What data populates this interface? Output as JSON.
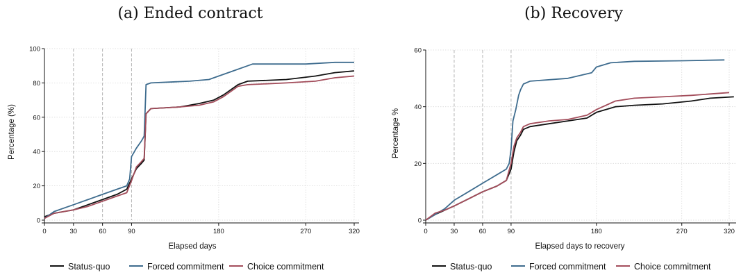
{
  "charts": [
    {
      "panel_title": "(a) Ended contract",
      "xlabel": "Elapsed days",
      "ylabel": "Percentage (%)",
      "xticks": [
        "0",
        "30",
        "60",
        "90",
        "180",
        "270",
        "320"
      ],
      "yticks": [
        "0",
        "20",
        "40",
        "60",
        "80",
        "100"
      ]
    },
    {
      "panel_title": "(b) Recovery",
      "xlabel": "Elapsed days to recovery",
      "ylabel": "Percentage %",
      "xticks": [
        "0",
        "30",
        "60",
        "90",
        "180",
        "270",
        "320"
      ],
      "yticks": [
        "0",
        "20",
        "40",
        "60"
      ]
    }
  ],
  "legend": [
    "Status-quo",
    "Forced commitment",
    "Choice commitment"
  ],
  "colors": {
    "status_quo": "#111111",
    "forced": "#3e6c8e",
    "choice": "#a34d5b"
  },
  "chart_data": [
    {
      "type": "line",
      "title": "(a) Ended contract",
      "xlabel": "Elapsed days",
      "ylabel": "Percentage (%)",
      "xlim": [
        0,
        325
      ],
      "ylim": [
        0,
        100
      ],
      "x_tick_values": [
        0,
        30,
        60,
        90,
        180,
        270,
        320
      ],
      "y_tick_values": [
        0,
        20,
        40,
        60,
        80,
        100
      ],
      "vlines": [
        30,
        60,
        90
      ],
      "grid": true,
      "legend_position": "bottom",
      "series": [
        {
          "name": "Status-quo",
          "color": "#111111",
          "points": [
            [
              0,
              2
            ],
            [
              10,
              4
            ],
            [
              30,
              6
            ],
            [
              45,
              9
            ],
            [
              60,
              12
            ],
            [
              75,
              15
            ],
            [
              85,
              18
            ],
            [
              90,
              24
            ],
            [
              95,
              30
            ],
            [
              100,
              33
            ],
            [
              103,
              35
            ],
            [
              105,
              62
            ],
            [
              110,
              65
            ],
            [
              140,
              66
            ],
            [
              160,
              68
            ],
            [
              175,
              70
            ],
            [
              185,
              73
            ],
            [
              200,
              79
            ],
            [
              210,
              81
            ],
            [
              250,
              82
            ],
            [
              280,
              84
            ],
            [
              300,
              86
            ],
            [
              320,
              87
            ]
          ]
        },
        {
          "name": "Forced commitment",
          "color": "#3e6c8e",
          "points": [
            [
              0,
              1
            ],
            [
              10,
              5
            ],
            [
              30,
              9
            ],
            [
              45,
              12
            ],
            [
              60,
              15
            ],
            [
              75,
              18
            ],
            [
              85,
              20
            ],
            [
              88,
              24
            ],
            [
              90,
              37
            ],
            [
              95,
              42
            ],
            [
              100,
              46
            ],
            [
              103,
              49
            ],
            [
              105,
              79
            ],
            [
              110,
              80
            ],
            [
              150,
              81
            ],
            [
              170,
              82
            ],
            [
              180,
              84
            ],
            [
              195,
              87
            ],
            [
              210,
              90
            ],
            [
              215,
              91
            ],
            [
              270,
              91
            ],
            [
              300,
              92
            ],
            [
              320,
              92
            ]
          ]
        },
        {
          "name": "Choice commitment",
          "color": "#a34d5b",
          "points": [
            [
              0,
              1
            ],
            [
              10,
              4
            ],
            [
              30,
              6
            ],
            [
              45,
              8
            ],
            [
              60,
              11
            ],
            [
              75,
              14
            ],
            [
              85,
              16
            ],
            [
              90,
              23
            ],
            [
              95,
              31
            ],
            [
              100,
              34
            ],
            [
              103,
              36
            ],
            [
              105,
              62
            ],
            [
              110,
              65
            ],
            [
              140,
              66
            ],
            [
              160,
              67
            ],
            [
              175,
              69
            ],
            [
              185,
              72
            ],
            [
              200,
              78
            ],
            [
              210,
              79
            ],
            [
              250,
              80
            ],
            [
              280,
              81
            ],
            [
              300,
              83
            ],
            [
              320,
              84
            ]
          ]
        }
      ]
    },
    {
      "type": "line",
      "title": "(b) Recovery",
      "xlabel": "Elapsed days to recovery",
      "ylabel": "Percentage %",
      "xlim": [
        0,
        325
      ],
      "ylim": [
        0,
        60
      ],
      "x_tick_values": [
        0,
        30,
        60,
        90,
        180,
        270,
        320
      ],
      "y_tick_values": [
        0,
        20,
        40,
        60
      ],
      "vlines": [
        30,
        60,
        90
      ],
      "grid": true,
      "legend_position": "bottom",
      "series": [
        {
          "name": "Status-quo",
          "color": "#111111",
          "points": [
            [
              0,
              0
            ],
            [
              10,
              2
            ],
            [
              20,
              3.5
            ],
            [
              30,
              5
            ],
            [
              45,
              7.5
            ],
            [
              60,
              10
            ],
            [
              75,
              12
            ],
            [
              85,
              14
            ],
            [
              90,
              18
            ],
            [
              93,
              24
            ],
            [
              96,
              28
            ],
            [
              100,
              30
            ],
            [
              103,
              32
            ],
            [
              110,
              33
            ],
            [
              130,
              34
            ],
            [
              150,
              35
            ],
            [
              170,
              36
            ],
            [
              180,
              38
            ],
            [
              200,
              40
            ],
            [
              220,
              40.5
            ],
            [
              250,
              41
            ],
            [
              280,
              42
            ],
            [
              300,
              43
            ],
            [
              325,
              43.5
            ]
          ]
        },
        {
          "name": "Forced commitment",
          "color": "#3e6c8e",
          "points": [
            [
              0,
              0
            ],
            [
              10,
              2
            ],
            [
              20,
              4
            ],
            [
              30,
              7
            ],
            [
              45,
              10
            ],
            [
              60,
              13
            ],
            [
              75,
              16
            ],
            [
              85,
              18
            ],
            [
              88,
              20
            ],
            [
              90,
              25
            ],
            [
              92,
              35
            ],
            [
              95,
              39
            ],
            [
              98,
              44
            ],
            [
              100,
              46
            ],
            [
              103,
              48
            ],
            [
              110,
              49
            ],
            [
              150,
              50
            ],
            [
              175,
              52
            ],
            [
              180,
              54
            ],
            [
              195,
              55.5
            ],
            [
              220,
              56
            ],
            [
              270,
              56.2
            ],
            [
              315,
              56.5
            ]
          ]
        },
        {
          "name": "Choice commitment",
          "color": "#a34d5b",
          "points": [
            [
              0,
              0
            ],
            [
              10,
              2.5
            ],
            [
              20,
              3.5
            ],
            [
              30,
              5
            ],
            [
              45,
              7.5
            ],
            [
              60,
              10
            ],
            [
              75,
              12
            ],
            [
              85,
              14
            ],
            [
              90,
              20
            ],
            [
              93,
              26
            ],
            [
              96,
              29
            ],
            [
              100,
              31
            ],
            [
              103,
              33
            ],
            [
              110,
              34
            ],
            [
              130,
              35
            ],
            [
              150,
              35.5
            ],
            [
              170,
              37
            ],
            [
              180,
              39
            ],
            [
              200,
              42
            ],
            [
              220,
              43
            ],
            [
              250,
              43.5
            ],
            [
              280,
              44
            ],
            [
              300,
              44.5
            ],
            [
              320,
              45
            ]
          ]
        }
      ]
    }
  ]
}
